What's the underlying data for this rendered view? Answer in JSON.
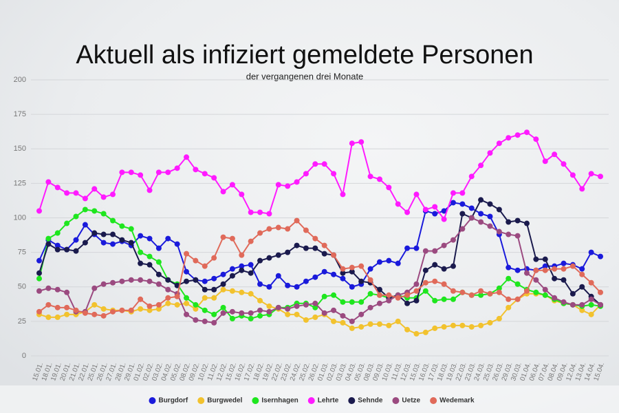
{
  "chart_data": {
    "type": "line",
    "title": "Aktuell als infiziert gemeldete Personen",
    "subtitle": "der vergangenen drei Monate",
    "categories": [
      "15.01.",
      "18.01.",
      "19.01.",
      "20.01.",
      "21.01.",
      "22.01.",
      "25.01.",
      "26.01.",
      "27.01.",
      "28.01.",
      "29.01.",
      "01.02.",
      "02.02.",
      "03.02.",
      "04.02.",
      "05.02.",
      "08.02.",
      "09.02.",
      "10.02.",
      "11.02.",
      "12.02.",
      "15.02.",
      "16.02.",
      "17.02.",
      "18.02.",
      "19.02.",
      "22.02.",
      "23.02.",
      "24.02.",
      "25.02.",
      "26.02.",
      "01.03.",
      "02.03.",
      "03.03.",
      "04.03.",
      "05.03.",
      "08.03.",
      "09.03.",
      "10.03.",
      "11.03.",
      "12.03.",
      "15.03.",
      "16.03.",
      "17.03.",
      "18.03.",
      "19.03.",
      "22.03.",
      "23.03.",
      "24.03.",
      "25.03.",
      "26.03.",
      "29.03.",
      "30.03.",
      "01.04.",
      "06.04.",
      "07.04.",
      "08.04.",
      "09.04.",
      "12.04.",
      "13.04.",
      "14.04.",
      "15.04."
    ],
    "series": [
      {
        "name": "Burgdorf",
        "color": "#1a1adb",
        "values": [
          69,
          84,
          80,
          77,
          84,
          95,
          88,
          82,
          81,
          83,
          80,
          87,
          85,
          78,
          85,
          81,
          61,
          55,
          54,
          56,
          59,
          63,
          65,
          66,
          52,
          50,
          58,
          51,
          50,
          54,
          57,
          61,
          59,
          56,
          50,
          52,
          63,
          68,
          69,
          67,
          78,
          78,
          105,
          103,
          105,
          111,
          110,
          107,
          103,
          101,
          88,
          64,
          62,
          63,
          62,
          65,
          65,
          67,
          66,
          63,
          75,
          72
        ]
      },
      {
        "name": "Burgwedel",
        "color": "#f2c22e",
        "values": [
          30,
          28,
          28,
          30,
          30,
          32,
          37,
          34,
          33,
          33,
          32,
          34,
          33,
          34,
          38,
          37,
          38,
          34,
          42,
          42,
          48,
          47,
          46,
          45,
          40,
          36,
          34,
          30,
          30,
          26,
          28,
          30,
          25,
          24,
          20,
          21,
          23,
          23,
          22,
          25,
          19,
          16,
          17,
          20,
          21,
          22,
          22,
          21,
          22,
          24,
          27,
          35,
          41,
          45,
          45,
          44,
          40,
          38,
          37,
          33,
          30,
          37
        ]
      },
      {
        "name": "Isernhagen",
        "color": "#1ee61e",
        "values": [
          56,
          85,
          89,
          96,
          101,
          106,
          105,
          103,
          98,
          94,
          92,
          75,
          72,
          68,
          55,
          52,
          42,
          37,
          33,
          30,
          35,
          27,
          29,
          27,
          29,
          30,
          35,
          35,
          38,
          38,
          35,
          43,
          44,
          39,
          39,
          39,
          45,
          44,
          42,
          44,
          42,
          42,
          47,
          40,
          41,
          41,
          46,
          44,
          44,
          45,
          49,
          56,
          52,
          48,
          46,
          44,
          41,
          38,
          37,
          36,
          37,
          36
        ]
      },
      {
        "name": "Lehrte",
        "color": "#ff1aff",
        "values": [
          105,
          126,
          122,
          118,
          118,
          114,
          121,
          115,
          117,
          133,
          133,
          131,
          120,
          133,
          133,
          136,
          144,
          135,
          132,
          129,
          119,
          124,
          117,
          104,
          104,
          103,
          124,
          123,
          126,
          132,
          139,
          139,
          132,
          117,
          154,
          155,
          130,
          128,
          122,
          110,
          104,
          117,
          106,
          108,
          99,
          118,
          118,
          130,
          138,
          147,
          154,
          158,
          160,
          162,
          157,
          141,
          146,
          139,
          131,
          121,
          132,
          130
        ]
      },
      {
        "name": "Sehnde",
        "color": "#1a1a4d",
        "values": [
          60,
          81,
          77,
          77,
          76,
          82,
          89,
          88,
          88,
          84,
          82,
          67,
          66,
          59,
          55,
          51,
          54,
          55,
          48,
          48,
          52,
          58,
          62,
          60,
          69,
          71,
          73,
          75,
          80,
          78,
          78,
          74,
          73,
          60,
          61,
          54,
          53,
          48,
          42,
          44,
          38,
          40,
          62,
          66,
          63,
          65,
          103,
          100,
          113,
          110,
          106,
          97,
          98,
          96,
          70,
          70,
          56,
          55,
          45,
          50,
          43,
          37
        ]
      },
      {
        "name": "Uetze",
        "color": "#9b4a80",
        "values": [
          47,
          49,
          48,
          46,
          32,
          32,
          49,
          52,
          53,
          54,
          55,
          55,
          54,
          52,
          48,
          45,
          30,
          26,
          25,
          24,
          31,
          32,
          31,
          31,
          33,
          32,
          35,
          34,
          36,
          37,
          38,
          31,
          33,
          29,
          25,
          30,
          35,
          38,
          40,
          44,
          46,
          52,
          76,
          76,
          80,
          84,
          92,
          100,
          97,
          94,
          90,
          88,
          87,
          60,
          55,
          48,
          42,
          39,
          37,
          37,
          41,
          37
        ]
      },
      {
        "name": "Wedemark",
        "color": "#e06a5a",
        "values": [
          32,
          37,
          35,
          35,
          33,
          31,
          30,
          29,
          32,
          33,
          33,
          41,
          36,
          37,
          42,
          43,
          74,
          69,
          65,
          71,
          86,
          85,
          73,
          83,
          89,
          92,
          93,
          92,
          98,
          91,
          85,
          80,
          73,
          63,
          64,
          65,
          55,
          44,
          44,
          42,
          44,
          47,
          53,
          54,
          52,
          47,
          46,
          44,
          47,
          45,
          46,
          41,
          41,
          47,
          62,
          62,
          63,
          63,
          65,
          59,
          53,
          46
        ]
      }
    ],
    "ylim": [
      0,
      200
    ],
    "yticks": [
      0,
      25,
      50,
      75,
      100,
      125,
      150,
      175,
      200
    ],
    "grid": true,
    "legend": "bottom"
  }
}
